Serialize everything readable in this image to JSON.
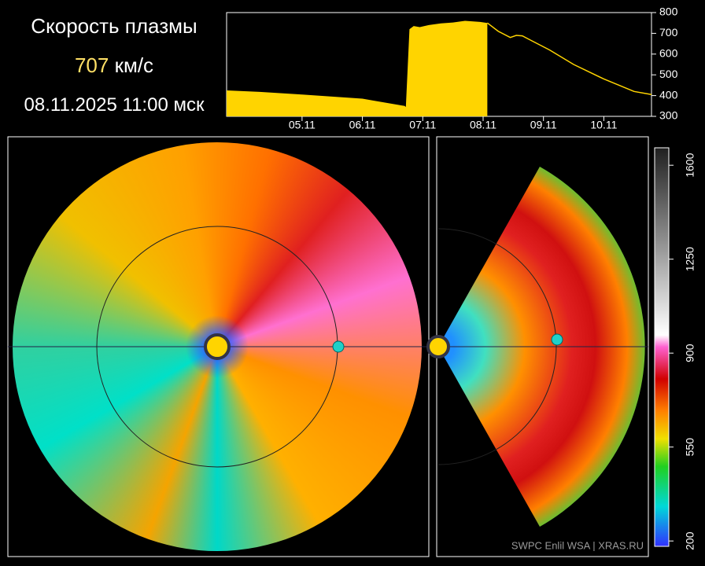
{
  "header": {
    "title": "Скорость плазмы",
    "speed": "707",
    "unit": "км/с",
    "datetime": "08.11.2025 11:00 мск"
  },
  "chart_data": {
    "type": "area",
    "color": "#ffd400",
    "xlim": [
      4.25,
      11.29
    ],
    "ylim": [
      300,
      800
    ],
    "xticks": [
      {
        "value": 5.5,
        "label": "05.11"
      },
      {
        "value": 6.5,
        "label": "06.11"
      },
      {
        "value": 7.5,
        "label": "07.11"
      },
      {
        "value": 8.5,
        "label": "08.11"
      },
      {
        "value": 9.5,
        "label": "09.11"
      },
      {
        "value": 10.5,
        "label": "10.11"
      }
    ],
    "yticks": [
      300,
      400,
      500,
      600,
      700,
      800
    ],
    "series": [
      {
        "style": "filled",
        "x": [
          4.25,
          4.8,
          5.5,
          6.5,
          7.2,
          7.22,
          7.28,
          7.35,
          7.45,
          7.6,
          7.8,
          8.0,
          8.2,
          8.45,
          8.57
        ],
        "values": [
          425,
          418,
          405,
          385,
          350,
          345,
          720,
          735,
          730,
          740,
          748,
          752,
          760,
          755,
          750
        ]
      },
      {
        "style": "line",
        "x": [
          8.57,
          8.75,
          8.95,
          9.05,
          9.15,
          9.3,
          9.6,
          10.0,
          10.5,
          11.0,
          11.29
        ],
        "values": [
          750,
          710,
          680,
          690,
          688,
          665,
          620,
          550,
          480,
          420,
          405
        ]
      }
    ]
  },
  "colorbar": {
    "lim": [
      180,
      1665
    ],
    "ticks": [
      200,
      550,
      900,
      1250,
      1600
    ]
  },
  "credit": "SWPC Enlil WSA  |  XRAS.RU"
}
